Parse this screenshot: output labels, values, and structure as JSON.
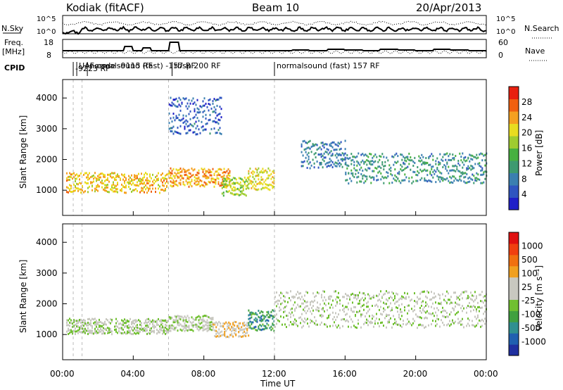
{
  "header": {
    "station": "Kodiak (fitACF)",
    "beam": "Beam 10",
    "date": "20/Apr/2013"
  },
  "aux_panels": {
    "nsky_label": "N.Sky",
    "nsearch_label": "N.Search",
    "freq_label_line1": "Freq.",
    "freq_label_line2": "[MHz]",
    "nave_label": "Nave",
    "cpid_label": "CPID",
    "left_ticks_top": [
      "10^5",
      "10^0"
    ],
    "right_ticks_top": [
      "10^5",
      "10^0"
    ],
    "freq_ticks": [
      "18",
      "8"
    ],
    "nave_ticks": [
      "60",
      "0"
    ],
    "cpid_entries": [
      {
        "text": "UAF code -9115 RF",
        "t": 0.8
      },
      {
        "text": "-9223 RF",
        "t": 0.6
      },
      {
        "text": "normalsound (fast) -157 RF",
        "t": 1.4
      },
      {
        "text": "rbsp 200 RF",
        "t": 6.2
      },
      {
        "text": "normalsound (fast) 157 RF",
        "t": 12.0
      }
    ]
  },
  "colorbars": {
    "power": {
      "label": "Power [dB]",
      "ticks": [
        "28",
        "24",
        "20",
        "16",
        "12",
        "8",
        "4"
      ],
      "colors": [
        "#1f1fc8",
        "#2f55c0",
        "#3a7fb0",
        "#3d9a70",
        "#47b040",
        "#9fcc30",
        "#e8dc20",
        "#f5a020",
        "#f06010",
        "#e82010"
      ]
    },
    "velocity": {
      "label": "Velocity [m s⁻¹]",
      "ticks": [
        "1000",
        "500",
        "100",
        "25",
        "-25",
        "-100",
        "-500",
        "-1000"
      ],
      "colors": [
        "#2030a0",
        "#2060b0",
        "#309090",
        "#40a040",
        "#70c030",
        "#c8c8c0",
        "#c8c8c0",
        "#f0a020",
        "#f07010",
        "#f04010",
        "#e01010"
      ]
    }
  },
  "axes": {
    "ylabel": "Slant Range [km]",
    "xlabel": "Time UT",
    "yticks": [
      "4000",
      "3000",
      "2000",
      "1000"
    ],
    "xticks": [
      "00:00",
      "04:00",
      "08:00",
      "12:00",
      "16:00",
      "20:00",
      "00:00"
    ]
  },
  "chart_data": {
    "type": "heatmap",
    "title": "Kodiak (fitACF) Beam 10 20/Apr/2013",
    "xlabel": "Time UT",
    "ylabel": "Slant Range [km]",
    "xlim_hours": [
      0,
      24
    ],
    "ylim_km": [
      180,
      4600
    ],
    "panels": [
      {
        "name": "Power",
        "unit": "dB",
        "range": [
          0,
          32
        ],
        "regions": [
          {
            "t0": 0.2,
            "t1": 6.0,
            "r0": 900,
            "r1": 1550,
            "value": 22
          },
          {
            "t0": 6.0,
            "t1": 9.5,
            "r0": 1100,
            "r1": 1700,
            "value": 24
          },
          {
            "t0": 9.0,
            "t1": 10.5,
            "r0": 800,
            "r1": 1400,
            "value": 18
          },
          {
            "t0": 10.5,
            "t1": 12.0,
            "r0": 1000,
            "r1": 1700,
            "value": 20
          },
          {
            "t0": 13.5,
            "t1": 16.0,
            "r0": 1700,
            "r1": 2600,
            "value": 8
          },
          {
            "t0": 16.0,
            "t1": 24.0,
            "r0": 1200,
            "r1": 2200,
            "value": 10
          },
          {
            "t0": 6.0,
            "t1": 9.0,
            "r0": 2800,
            "r1": 4000,
            "value": 6
          }
        ]
      },
      {
        "name": "Velocity",
        "unit": "m s^-1",
        "range": [
          -1000,
          1000
        ],
        "regions": [
          {
            "t0": 0.2,
            "t1": 6.0,
            "r0": 1000,
            "r1": 1500,
            "value": 0
          },
          {
            "t0": 6.0,
            "t1": 8.5,
            "r0": 1100,
            "r1": 1600,
            "value": 0
          },
          {
            "t0": 8.5,
            "t1": 10.5,
            "r0": 900,
            "r1": 1400,
            "value": 200
          },
          {
            "t0": 10.5,
            "t1": 12.0,
            "r0": 1100,
            "r1": 1800,
            "value": -500
          },
          {
            "t0": 12.0,
            "t1": 24.0,
            "r0": 1200,
            "r1": 2400,
            "value": 0
          }
        ]
      }
    ]
  }
}
